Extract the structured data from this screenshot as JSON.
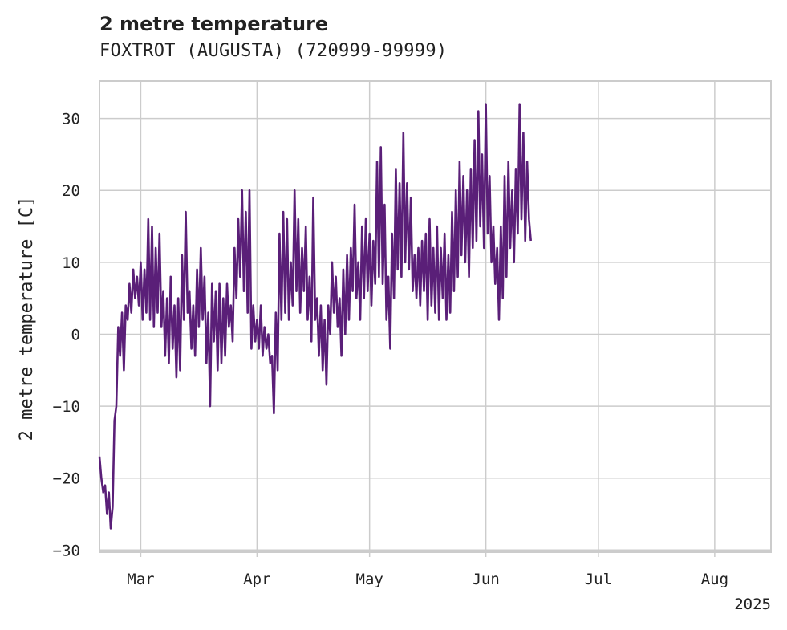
{
  "chart_data": {
    "type": "line",
    "title": "2 metre temperature",
    "subtitle": "FOXTROT (AUGUSTA) (720999-99999)",
    "ylabel": "2 metre temperature [C]",
    "xlabel": "",
    "year_label": "2025",
    "xlim": [
      "2025-02-18",
      "2025-08-16"
    ],
    "ylim": [
      -30.3,
      35.2
    ],
    "x_ticks": [
      {
        "date": "2025-03-01",
        "label": "Mar"
      },
      {
        "date": "2025-04-01",
        "label": "Apr"
      },
      {
        "date": "2025-05-01",
        "label": "May"
      },
      {
        "date": "2025-06-01",
        "label": "Jun"
      },
      {
        "date": "2025-07-01",
        "label": "Jul"
      },
      {
        "date": "2025-08-01",
        "label": "Aug"
      }
    ],
    "y_ticks": [
      {
        "value": 30,
        "label": "30"
      },
      {
        "value": 20,
        "label": "20"
      },
      {
        "value": 10,
        "label": "10"
      },
      {
        "value": 0,
        "label": "0"
      },
      {
        "value": -10,
        "label": "−10"
      },
      {
        "value": -20,
        "label": "−20"
      },
      {
        "value": -30,
        "label": "−30"
      }
    ],
    "grid": true,
    "series": [
      {
        "color": "#5a1f78",
        "points": [
          [
            "2025-02-18T00:00",
            -17
          ],
          [
            "2025-02-18T12:00",
            -20
          ],
          [
            "2025-02-19T00:00",
            -22
          ],
          [
            "2025-02-19T12:00",
            -21
          ],
          [
            "2025-02-20T00:00",
            -25
          ],
          [
            "2025-02-20T12:00",
            -22
          ],
          [
            "2025-02-21T00:00",
            -27
          ],
          [
            "2025-02-21T12:00",
            -24
          ],
          [
            "2025-02-22T00:00",
            -12
          ],
          [
            "2025-02-22T12:00",
            -10
          ],
          [
            "2025-02-23T00:00",
            1
          ],
          [
            "2025-02-23T12:00",
            -3
          ],
          [
            "2025-02-24T00:00",
            3
          ],
          [
            "2025-02-24T12:00",
            -5
          ],
          [
            "2025-02-25T00:00",
            4
          ],
          [
            "2025-02-25T12:00",
            2
          ],
          [
            "2025-02-26T00:00",
            7
          ],
          [
            "2025-02-26T12:00",
            3
          ],
          [
            "2025-02-27T00:00",
            9
          ],
          [
            "2025-02-27T12:00",
            5
          ],
          [
            "2025-02-28T00:00",
            8
          ],
          [
            "2025-02-28T12:00",
            4
          ],
          [
            "2025-03-01T00:00",
            10
          ],
          [
            "2025-03-01T12:00",
            2
          ],
          [
            "2025-03-02T00:00",
            9
          ],
          [
            "2025-03-02T12:00",
            3
          ],
          [
            "2025-03-03T00:00",
            16
          ],
          [
            "2025-03-03T12:00",
            2
          ],
          [
            "2025-03-04T00:00",
            15
          ],
          [
            "2025-03-04T12:00",
            1
          ],
          [
            "2025-03-05T00:00",
            12
          ],
          [
            "2025-03-05T12:00",
            3
          ],
          [
            "2025-03-06T00:00",
            14
          ],
          [
            "2025-03-06T12:00",
            1
          ],
          [
            "2025-03-07T00:00",
            6
          ],
          [
            "2025-03-07T12:00",
            -3
          ],
          [
            "2025-03-08T00:00",
            5
          ],
          [
            "2025-03-08T12:00",
            -4
          ],
          [
            "2025-03-09T00:00",
            8
          ],
          [
            "2025-03-09T12:00",
            -2
          ],
          [
            "2025-03-10T00:00",
            4
          ],
          [
            "2025-03-10T12:00",
            -6
          ],
          [
            "2025-03-11T00:00",
            5
          ],
          [
            "2025-03-11T12:00",
            -5
          ],
          [
            "2025-03-12T00:00",
            11
          ],
          [
            "2025-03-12T12:00",
            2
          ],
          [
            "2025-03-13T00:00",
            17
          ],
          [
            "2025-03-13T12:00",
            3
          ],
          [
            "2025-03-14T00:00",
            6
          ],
          [
            "2025-03-14T12:00",
            -2
          ],
          [
            "2025-03-15T00:00",
            4
          ],
          [
            "2025-03-15T12:00",
            -3
          ],
          [
            "2025-03-16T00:00",
            9
          ],
          [
            "2025-03-16T12:00",
            1
          ],
          [
            "2025-03-17T00:00",
            12
          ],
          [
            "2025-03-17T12:00",
            2
          ],
          [
            "2025-03-18T00:00",
            8
          ],
          [
            "2025-03-18T12:00",
            -4
          ],
          [
            "2025-03-19T00:00",
            3
          ],
          [
            "2025-03-19T12:00",
            -10
          ],
          [
            "2025-03-20T00:00",
            7
          ],
          [
            "2025-03-20T12:00",
            -1
          ],
          [
            "2025-03-21T00:00",
            6
          ],
          [
            "2025-03-21T12:00",
            -5
          ],
          [
            "2025-03-22T00:00",
            7
          ],
          [
            "2025-03-22T12:00",
            -4
          ],
          [
            "2025-03-23T00:00",
            5
          ],
          [
            "2025-03-23T12:00",
            -3
          ],
          [
            "2025-03-24T00:00",
            7
          ],
          [
            "2025-03-24T12:00",
            1
          ],
          [
            "2025-03-25T00:00",
            4
          ],
          [
            "2025-03-25T12:00",
            -1
          ],
          [
            "2025-03-26T00:00",
            12
          ],
          [
            "2025-03-26T12:00",
            5
          ],
          [
            "2025-03-27T00:00",
            16
          ],
          [
            "2025-03-27T12:00",
            8
          ],
          [
            "2025-03-28T00:00",
            20
          ],
          [
            "2025-03-28T12:00",
            6
          ],
          [
            "2025-03-29T00:00",
            17
          ],
          [
            "2025-03-29T12:00",
            3
          ],
          [
            "2025-03-30T00:00",
            20
          ],
          [
            "2025-03-30T12:00",
            -2
          ],
          [
            "2025-03-31T00:00",
            4
          ],
          [
            "2025-03-31T12:00",
            -1
          ],
          [
            "2025-04-01T00:00",
            2
          ],
          [
            "2025-04-01T12:00",
            -2
          ],
          [
            "2025-04-02T00:00",
            4
          ],
          [
            "2025-04-02T12:00",
            -3
          ],
          [
            "2025-04-03T00:00",
            1
          ],
          [
            "2025-04-03T12:00",
            -2
          ],
          [
            "2025-04-04T00:00",
            0
          ],
          [
            "2025-04-04T12:00",
            -4
          ],
          [
            "2025-04-05T00:00",
            -3
          ],
          [
            "2025-04-05T12:00",
            -11
          ],
          [
            "2025-04-06T00:00",
            3
          ],
          [
            "2025-04-06T12:00",
            -5
          ],
          [
            "2025-04-07T00:00",
            14
          ],
          [
            "2025-04-07T12:00",
            2
          ],
          [
            "2025-04-08T00:00",
            17
          ],
          [
            "2025-04-08T12:00",
            3
          ],
          [
            "2025-04-09T00:00",
            16
          ],
          [
            "2025-04-09T12:00",
            2
          ],
          [
            "2025-04-10T00:00",
            10
          ],
          [
            "2025-04-10T12:00",
            4
          ],
          [
            "2025-04-11T00:00",
            20
          ],
          [
            "2025-04-11T12:00",
            6
          ],
          [
            "2025-04-12T00:00",
            16
          ],
          [
            "2025-04-12T12:00",
            3
          ],
          [
            "2025-04-13T00:00",
            12
          ],
          [
            "2025-04-13T12:00",
            6
          ],
          [
            "2025-04-14T00:00",
            15
          ],
          [
            "2025-04-14T12:00",
            2
          ],
          [
            "2025-04-15T00:00",
            8
          ],
          [
            "2025-04-15T12:00",
            -1
          ],
          [
            "2025-04-16T00:00",
            19
          ],
          [
            "2025-04-16T12:00",
            2
          ],
          [
            "2025-04-17T00:00",
            5
          ],
          [
            "2025-04-17T12:00",
            -3
          ],
          [
            "2025-04-18T00:00",
            4
          ],
          [
            "2025-04-18T12:00",
            -5
          ],
          [
            "2025-04-19T00:00",
            2
          ],
          [
            "2025-04-19T12:00",
            -7
          ],
          [
            "2025-04-20T00:00",
            4
          ],
          [
            "2025-04-20T12:00",
            0
          ],
          [
            "2025-04-21T00:00",
            10
          ],
          [
            "2025-04-21T12:00",
            3
          ],
          [
            "2025-04-22T00:00",
            8
          ],
          [
            "2025-04-22T12:00",
            1
          ],
          [
            "2025-04-23T00:00",
            5
          ],
          [
            "2025-04-23T12:00",
            -3
          ],
          [
            "2025-04-24T00:00",
            9
          ],
          [
            "2025-04-24T12:00",
            0
          ],
          [
            "2025-04-25T00:00",
            11
          ],
          [
            "2025-04-25T12:00",
            2
          ],
          [
            "2025-04-26T00:00",
            12
          ],
          [
            "2025-04-26T12:00",
            6
          ],
          [
            "2025-04-27T00:00",
            18
          ],
          [
            "2025-04-27T12:00",
            5
          ],
          [
            "2025-04-28T00:00",
            10
          ],
          [
            "2025-04-28T12:00",
            2
          ],
          [
            "2025-04-29T00:00",
            15
          ],
          [
            "2025-04-29T12:00",
            5
          ],
          [
            "2025-04-30T00:00",
            16
          ],
          [
            "2025-04-30T12:00",
            6
          ],
          [
            "2025-05-01T00:00",
            14
          ],
          [
            "2025-05-01T12:00",
            4
          ],
          [
            "2025-05-02T00:00",
            13
          ],
          [
            "2025-05-02T12:00",
            7
          ],
          [
            "2025-05-03T00:00",
            24
          ],
          [
            "2025-05-03T12:00",
            8
          ],
          [
            "2025-05-04T00:00",
            26
          ],
          [
            "2025-05-04T12:00",
            7
          ],
          [
            "2025-05-05T00:00",
            18
          ],
          [
            "2025-05-05T12:00",
            2
          ],
          [
            "2025-05-06T00:00",
            8
          ],
          [
            "2025-05-06T12:00",
            -2
          ],
          [
            "2025-05-07T00:00",
            14
          ],
          [
            "2025-05-07T12:00",
            5
          ],
          [
            "2025-05-08T00:00",
            23
          ],
          [
            "2025-05-08T12:00",
            9
          ],
          [
            "2025-05-09T00:00",
            21
          ],
          [
            "2025-05-09T12:00",
            8
          ],
          [
            "2025-05-10T00:00",
            28
          ],
          [
            "2025-05-10T12:00",
            10
          ],
          [
            "2025-05-11T00:00",
            21
          ],
          [
            "2025-05-11T12:00",
            9
          ],
          [
            "2025-05-12T00:00",
            19
          ],
          [
            "2025-05-12T12:00",
            6
          ],
          [
            "2025-05-13T00:00",
            11
          ],
          [
            "2025-05-13T12:00",
            5
          ],
          [
            "2025-05-14T00:00",
            12
          ],
          [
            "2025-05-14T12:00",
            4
          ],
          [
            "2025-05-15T00:00",
            13
          ],
          [
            "2025-05-15T12:00",
            6
          ],
          [
            "2025-05-16T00:00",
            14
          ],
          [
            "2025-05-16T12:00",
            2
          ],
          [
            "2025-05-17T00:00",
            16
          ],
          [
            "2025-05-17T12:00",
            4
          ],
          [
            "2025-05-18T00:00",
            12
          ],
          [
            "2025-05-18T12:00",
            3
          ],
          [
            "2025-05-19T00:00",
            15
          ],
          [
            "2025-05-19T12:00",
            2
          ],
          [
            "2025-05-20T00:00",
            12
          ],
          [
            "2025-05-20T12:00",
            5
          ],
          [
            "2025-05-21T00:00",
            14
          ],
          [
            "2025-05-21T12:00",
            2
          ],
          [
            "2025-05-22T00:00",
            11
          ],
          [
            "2025-05-22T12:00",
            3
          ],
          [
            "2025-05-23T00:00",
            17
          ],
          [
            "2025-05-23T12:00",
            6
          ],
          [
            "2025-05-24T00:00",
            20
          ],
          [
            "2025-05-24T12:00",
            8
          ],
          [
            "2025-05-25T00:00",
            24
          ],
          [
            "2025-05-25T12:00",
            11
          ],
          [
            "2025-05-26T00:00",
            22
          ],
          [
            "2025-05-26T12:00",
            10
          ],
          [
            "2025-05-27T00:00",
            20
          ],
          [
            "2025-05-27T12:00",
            8
          ],
          [
            "2025-05-28T00:00",
            23
          ],
          [
            "2025-05-28T12:00",
            12
          ],
          [
            "2025-05-29T00:00",
            27
          ],
          [
            "2025-05-29T12:00",
            13
          ],
          [
            "2025-05-30T00:00",
            31
          ],
          [
            "2025-05-30T12:00",
            15
          ],
          [
            "2025-05-31T00:00",
            25
          ],
          [
            "2025-05-31T12:00",
            12
          ],
          [
            "2025-06-01T00:00",
            32
          ],
          [
            "2025-06-01T12:00",
            14
          ],
          [
            "2025-06-02T00:00",
            22
          ],
          [
            "2025-06-02T12:00",
            10
          ],
          [
            "2025-06-03T00:00",
            15
          ],
          [
            "2025-06-03T12:00",
            7
          ],
          [
            "2025-06-04T00:00",
            12
          ],
          [
            "2025-06-04T12:00",
            2
          ],
          [
            "2025-06-05T00:00",
            15
          ],
          [
            "2025-06-05T12:00",
            5
          ],
          [
            "2025-06-06T00:00",
            22
          ],
          [
            "2025-06-06T12:00",
            8
          ],
          [
            "2025-06-07T00:00",
            24
          ],
          [
            "2025-06-07T12:00",
            12
          ],
          [
            "2025-06-08T00:00",
            20
          ],
          [
            "2025-06-08T12:00",
            10
          ],
          [
            "2025-06-09T00:00",
            23
          ],
          [
            "2025-06-09T12:00",
            14
          ],
          [
            "2025-06-10T00:00",
            32
          ],
          [
            "2025-06-10T12:00",
            16
          ],
          [
            "2025-06-11T00:00",
            28
          ],
          [
            "2025-06-11T12:00",
            13
          ],
          [
            "2025-06-12T00:00",
            24
          ],
          [
            "2025-06-12T12:00",
            16
          ],
          [
            "2025-06-13T00:00",
            13
          ]
        ]
      }
    ]
  }
}
